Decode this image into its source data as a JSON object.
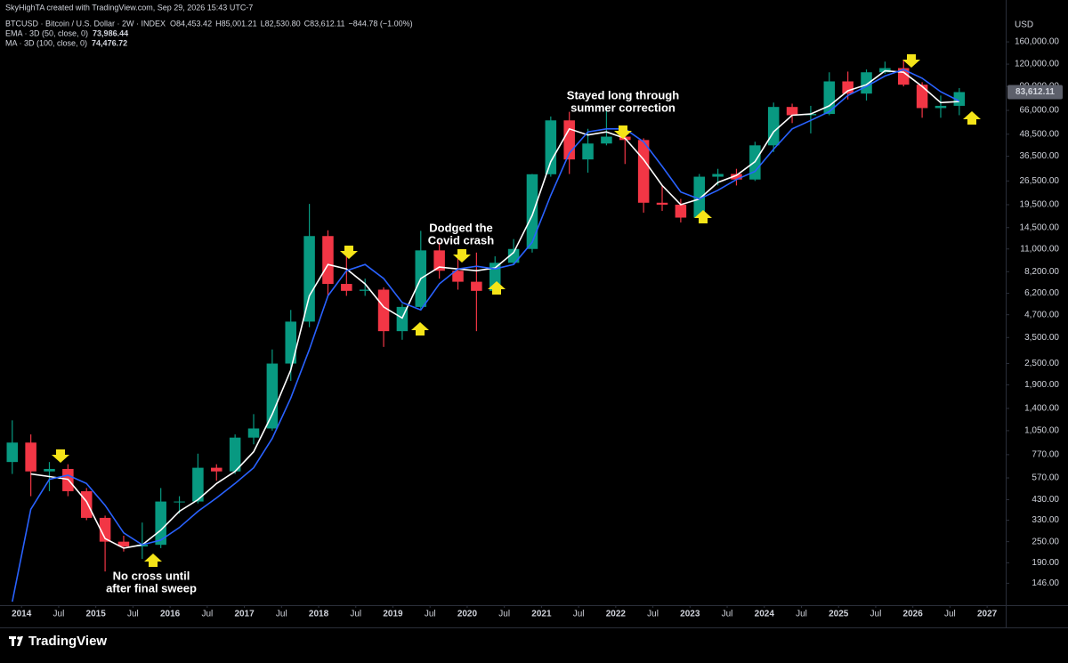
{
  "header": {
    "credit": "SkyHighTA created with TradingView.com, Sep 29, 2026 15:43 UTC-7",
    "symbol": "BTCUSD · Bitcoin / U.S. Dollar · 2W · INDEX",
    "ohlc": [
      "O84,453.42",
      "H85,001.21",
      "L82,530.80",
      "C83,612.11"
    ],
    "change": "−844.78 (−1.00%)"
  },
  "footer": {
    "logo": "TradingView"
  },
  "chart_data": {
    "type": "candlestick",
    "currency": "USD",
    "up_color": "#089981",
    "down_color": "#f23645",
    "log_scale": true,
    "grid": false,
    "x": [
      2013.875,
      2014.125,
      2014.375,
      2014.625,
      2014.875,
      2015.125,
      2015.375,
      2015.625,
      2015.875,
      2016.125,
      2016.375,
      2016.625,
      2016.875,
      2017.125,
      2017.375,
      2017.625,
      2017.875,
      2018.125,
      2018.375,
      2018.625,
      2018.875,
      2019.125,
      2019.375,
      2019.625,
      2019.875,
      2020.125,
      2020.375,
      2020.625,
      2020.875,
      2021.125,
      2021.375,
      2021.625,
      2021.875,
      2022.125,
      2022.375,
      2022.625,
      2022.875,
      2023.125,
      2023.375,
      2023.625,
      2023.875,
      2024.125,
      2024.375,
      2024.625,
      2024.875,
      2025.125,
      2025.375,
      2025.625,
      2025.875,
      2026.125,
      2026.375,
      2026.625
    ],
    "open": [
      700,
      900,
      620,
      640,
      480,
      340,
      250,
      235,
      240,
      420,
      420,
      650,
      620,
      960,
      1080,
      2500,
      4300,
      13000,
      7000,
      6400,
      6500,
      3800,
      5200,
      10800,
      8300,
      7200,
      6400,
      9200,
      11000,
      28900,
      58000,
      35000,
      43000,
      47000,
      45000,
      20000,
      19500,
      16500,
      28000,
      29000,
      27000,
      42000,
      69000,
      62000,
      63000,
      96000,
      82000,
      108000,
      114000,
      92000,
      68000,
      70000
    ],
    "high": [
      1200,
      1000,
      700,
      680,
      500,
      350,
      270,
      320,
      500,
      450,
      780,
      680,
      1000,
      1300,
      3000,
      5000,
      19700,
      14000,
      10000,
      7500,
      6700,
      5400,
      13900,
      12000,
      10000,
      10500,
      10000,
      12500,
      29000,
      61000,
      64800,
      52000,
      69000,
      48000,
      46000,
      25000,
      21000,
      29000,
      31000,
      31000,
      44000,
      73000,
      72000,
      70000,
      108000,
      109000,
      112000,
      124000,
      126000,
      95000,
      80000,
      88000
    ],
    "low": [
      600,
      450,
      480,
      450,
      330,
      170,
      220,
      200,
      230,
      360,
      410,
      550,
      600,
      880,
      1050,
      2000,
      4000,
      6000,
      6000,
      6000,
      3100,
      3400,
      5000,
      7500,
      6500,
      3800,
      6300,
      9000,
      10500,
      28000,
      29000,
      29500,
      42000,
      33000,
      17600,
      18000,
      15500,
      16300,
      25000,
      25000,
      26500,
      38500,
      56000,
      49000,
      62000,
      76000,
      75000,
      106000,
      90000,
      60000,
      60000,
      62000
    ],
    "close": [
      900,
      620,
      640,
      480,
      340,
      250,
      235,
      240,
      420,
      420,
      650,
      620,
      960,
      1080,
      2500,
      4300,
      13000,
      7000,
      6400,
      6500,
      3800,
      5200,
      10800,
      8300,
      7200,
      6400,
      9200,
      11000,
      28900,
      58000,
      35000,
      43000,
      47000,
      45000,
      20000,
      19500,
      16500,
      28000,
      29000,
      27000,
      42000,
      69000,
      62000,
      63000,
      96000,
      82000,
      108000,
      114000,
      92000,
      68000,
      70000,
      83612.11
    ],
    "last_price": {
      "value": 83612.11,
      "label": "83,612.11"
    },
    "series": [
      {
        "name": "EMA · 3D (50, close, 0)",
        "color": "#ffffff",
        "last_label": "73,986.44",
        "values": [
          null,
          600,
          580,
          560,
          420,
          260,
          230,
          240,
          290,
          370,
          430,
          530,
          620,
          800,
          1300,
          2300,
          6000,
          9000,
          8500,
          7000,
          5200,
          4500,
          7500,
          8700,
          8500,
          8300,
          8600,
          10500,
          17000,
          34000,
          52000,
          48000,
          50000,
          46000,
          35000,
          25000,
          19500,
          21000,
          26000,
          28500,
          34000,
          50000,
          62000,
          63000,
          70000,
          85000,
          92000,
          110000,
          108000,
          90000,
          73000,
          73986.44
        ]
      },
      {
        "name": "MA · 3D (100, close, 0)",
        "color": "#2962ff",
        "last_label": "74,476.72",
        "values": [
          115,
          380,
          560,
          590,
          530,
          400,
          280,
          240,
          255,
          300,
          370,
          440,
          530,
          650,
          950,
          1600,
          3000,
          6000,
          8300,
          9000,
          7500,
          5500,
          5000,
          7000,
          8500,
          8800,
          8500,
          9000,
          12000,
          22000,
          38000,
          50000,
          52000,
          52000,
          44000,
          32000,
          23000,
          21000,
          23500,
          27000,
          30000,
          40000,
          52000,
          58000,
          65000,
          80000,
          90000,
          103000,
          112000,
          100000,
          84000,
          74476.72
        ]
      }
    ],
    "xlim": [
      2013.71,
      2027.25
    ],
    "xticks": [
      2014,
      {
        "value": 2014.5,
        "label": "Jul"
      },
      2015,
      {
        "value": 2015.5,
        "label": "Jul"
      },
      2016,
      {
        "value": 2016.5,
        "label": "Jul"
      },
      2017,
      {
        "value": 2017.5,
        "label": "Jul"
      },
      2018,
      {
        "value": 2018.5,
        "label": "Jul"
      },
      2019,
      {
        "value": 2019.5,
        "label": "Jul"
      },
      2020,
      {
        "value": 2020.5,
        "label": "Jul"
      },
      2021,
      {
        "value": 2021.5,
        "label": "Jul"
      },
      2022,
      {
        "value": 2022.5,
        "label": "Jul"
      },
      2023,
      {
        "value": 2023.5,
        "label": "Jul"
      },
      2024,
      {
        "value": 2024.5,
        "label": "Jul"
      },
      2025,
      {
        "value": 2025.5,
        "label": "Jul"
      },
      2026,
      {
        "value": 2026.5,
        "label": "Jul"
      },
      2027
    ],
    "ylim": [
      110,
      275000
    ],
    "yticks": [
      {
        "value": 146,
        "label": "146.00"
      },
      {
        "value": 190,
        "label": "190.00"
      },
      {
        "value": 250,
        "label": "250.00"
      },
      {
        "value": 330,
        "label": "330.00"
      },
      {
        "value": 430,
        "label": "430.00"
      },
      {
        "value": 570,
        "label": "570.00"
      },
      {
        "value": 770,
        "label": "770.00"
      },
      {
        "value": 1050,
        "label": "1,050.00"
      },
      {
        "value": 1400,
        "label": "1,400.00"
      },
      {
        "value": 1900,
        "label": "1,900.00"
      },
      {
        "value": 2500,
        "label": "2,500.00"
      },
      {
        "value": 3500,
        "label": "3,500.00"
      },
      {
        "value": 4700,
        "label": "4,700.00"
      },
      {
        "value": 6200,
        "label": "6,200.00"
      },
      {
        "value": 8200,
        "label": "8,200.00"
      },
      {
        "value": 11000,
        "label": "11,000.00"
      },
      {
        "value": 14500,
        "label": "14,500.00"
      },
      {
        "value": 19500,
        "label": "19,500.00"
      },
      {
        "value": 26500,
        "label": "26,500.00"
      },
      {
        "value": 36500,
        "label": "36,500.00"
      },
      {
        "value": 48500,
        "label": "48,500.00"
      },
      {
        "value": 66000,
        "label": "66,000.00"
      },
      {
        "value": 90000,
        "label": "90,000.00"
      },
      {
        "value": 120000,
        "label": "120,000.00"
      },
      {
        "value": 160000,
        "label": "160,000.00"
      }
    ],
    "annotations": [
      {
        "lines": [
          "No cross until",
          "after final sweep"
        ]
      },
      {
        "lines": [
          "Dodged the",
          "Covid crash"
        ]
      },
      {
        "lines": [
          "Stayed long through",
          "summer correction"
        ]
      }
    ]
  }
}
